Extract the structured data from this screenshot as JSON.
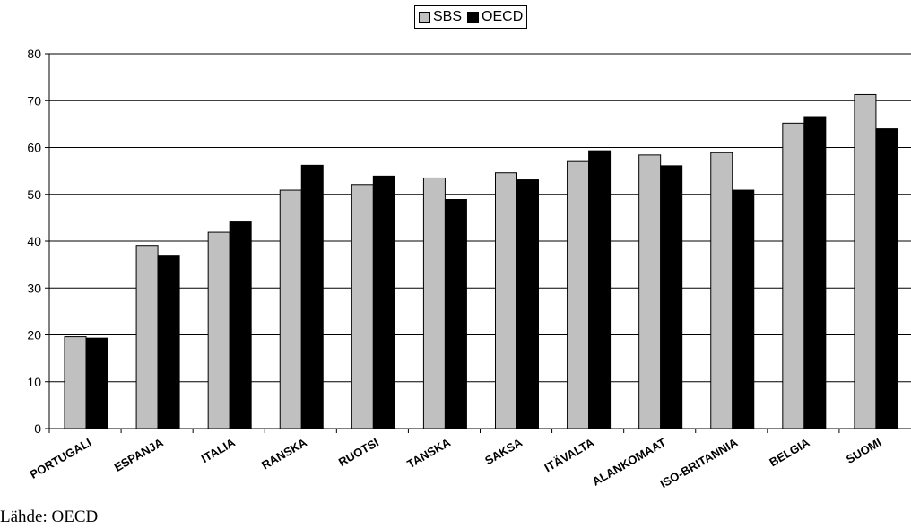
{
  "chart_data": {
    "type": "bar",
    "title": "",
    "xlabel": "",
    "ylabel": "",
    "ylim": [
      0,
      80
    ],
    "yticks": [
      0,
      10,
      20,
      30,
      40,
      50,
      60,
      70,
      80
    ],
    "grid": true,
    "legend_position": "top-center",
    "categories": [
      "PORTUGALI",
      "ESPANJA",
      "ITALIA",
      "RANSKA",
      "RUOTSI",
      "TANSKA",
      "SAKSA",
      "ITÄVALTA",
      "ALANKOMAAT",
      "ISO-BRITANNIA",
      "BELGIA",
      "SUOMI"
    ],
    "series": [
      {
        "name": "SBS",
        "color": "#c0c0c0",
        "values": [
          19.6,
          39.1,
          41.9,
          50.9,
          52.1,
          53.5,
          54.6,
          57.0,
          58.4,
          58.9,
          65.2,
          71.3
        ]
      },
      {
        "name": "OECD",
        "color": "#000000",
        "values": [
          19.3,
          37.0,
          44.1,
          56.2,
          53.9,
          48.9,
          53.1,
          59.3,
          56.1,
          50.9,
          66.6,
          64.0
        ]
      }
    ]
  },
  "footnote": "Lähde: OECD"
}
